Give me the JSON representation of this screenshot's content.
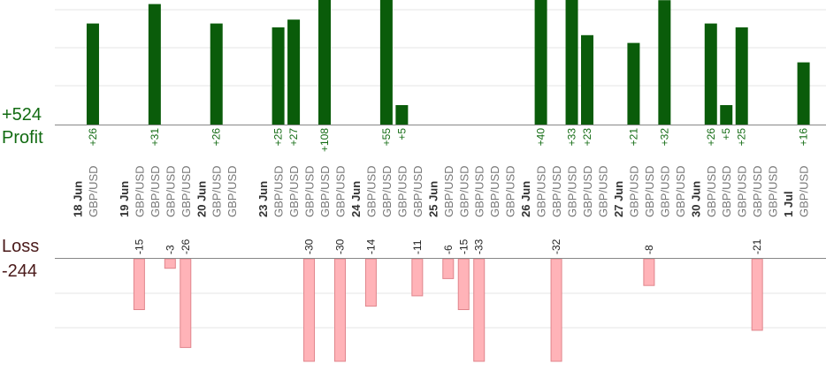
{
  "summary": {
    "profit_total": "+524",
    "profit_label": "Profit",
    "loss_label": "Loss",
    "loss_total": "-244"
  },
  "colors": {
    "profit_bar": "#0a5c0a",
    "profit_text": "#126b12",
    "loss_bar": "#ffb3b8",
    "loss_bar_edge": "#e0858c",
    "loss_text": "#4a1a1a",
    "grid": "#e6e6e6",
    "axis": "#888888",
    "date_text": "#333333",
    "pair_text": "#777777"
  },
  "chart_data": {
    "type": "bar",
    "dates": [
      {
        "label": "18 Jun",
        "col": 0
      },
      {
        "label": "19 Jun",
        "col": 3
      },
      {
        "label": "20 Jun",
        "col": 8
      },
      {
        "label": "23 Jun",
        "col": 12
      },
      {
        "label": "24 Jun",
        "col": 18
      },
      {
        "label": "25 Jun",
        "col": 23
      },
      {
        "label": "26 Jun",
        "col": 29
      },
      {
        "label": "27 Jun",
        "col": 35
      },
      {
        "label": "30 Jun",
        "col": 40
      },
      {
        "label": "1 Jul",
        "col": 46
      }
    ],
    "columns": [
      {
        "col": 1,
        "pair": "GBP/USD",
        "value": 26
      },
      {
        "col": 4,
        "pair": "GBP/USD",
        "value": -15
      },
      {
        "col": 5,
        "pair": "GBP/USD",
        "value": 31
      },
      {
        "col": 6,
        "pair": "GBP/USD",
        "value": -3
      },
      {
        "col": 7,
        "pair": "GBP/USD",
        "value": -26
      },
      {
        "col": 9,
        "pair": "GBP/USD",
        "value": 26
      },
      {
        "col": 10,
        "pair": "GBP/USD",
        "value": null
      },
      {
        "col": 13,
        "pair": "GBP/USD",
        "value": 25
      },
      {
        "col": 14,
        "pair": "GBP/USD",
        "value": 27
      },
      {
        "col": 15,
        "pair": "GBP/USD",
        "value": -30
      },
      {
        "col": 16,
        "pair": "GBP/USD",
        "value": 108
      },
      {
        "col": 17,
        "pair": "GBP/USD",
        "value": -30
      },
      {
        "col": 19,
        "pair": "GBP/USD",
        "value": -14
      },
      {
        "col": 20,
        "pair": "GBP/USD",
        "value": 55
      },
      {
        "col": 21,
        "pair": "GBP/USD",
        "value": 5
      },
      {
        "col": 22,
        "pair": "GBP/USD",
        "value": -11
      },
      {
        "col": 24,
        "pair": "GBP/USD",
        "value": -6
      },
      {
        "col": 25,
        "pair": "GBP/USD",
        "value": -15
      },
      {
        "col": 26,
        "pair": "GBP/USD",
        "value": -33
      },
      {
        "col": 27,
        "pair": "GBP/USD",
        "value": null
      },
      {
        "col": 28,
        "pair": "GBP/USD",
        "value": null
      },
      {
        "col": 30,
        "pair": "GBP/USD",
        "value": 40
      },
      {
        "col": 31,
        "pair": "GBP/USD",
        "value": -32
      },
      {
        "col": 32,
        "pair": "GBP/USD",
        "value": 33
      },
      {
        "col": 33,
        "pair": "GBP/USD",
        "value": 23
      },
      {
        "col": 34,
        "pair": "GBP/USD",
        "value": null
      },
      {
        "col": 36,
        "pair": "GBP/USD",
        "value": 21
      },
      {
        "col": 37,
        "pair": "GBP/USD",
        "value": -8
      },
      {
        "col": 38,
        "pair": "GBP/USD",
        "value": 32
      },
      {
        "col": 39,
        "pair": "GBP/USD",
        "value": null
      },
      {
        "col": 41,
        "pair": "GBP/USD",
        "value": 26
      },
      {
        "col": 42,
        "pair": "GBP/USD",
        "value": 5
      },
      {
        "col": 43,
        "pair": "GBP/USD",
        "value": 25
      },
      {
        "col": 44,
        "pair": "GBP/USD",
        "value": -21
      },
      {
        "col": 45,
        "pair": "GBP/USD",
        "value": null
      },
      {
        "col": 47,
        "pair": "GBP/USD",
        "value": 16
      }
    ]
  }
}
